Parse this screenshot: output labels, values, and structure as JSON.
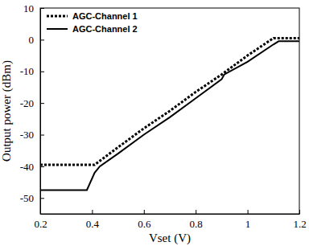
{
  "chart_data": {
    "type": "line",
    "x_label": "Vset (V)",
    "y_label": "Output power (dBm)",
    "xlim": [
      0.2,
      1.2
    ],
    "xticks": [
      0.2,
      0.4,
      0.6,
      0.8,
      1,
      1.2
    ],
    "ylim": [
      -55,
      10
    ],
    "yticks": [
      -50,
      -40,
      -30,
      -20,
      -10,
      0,
      10
    ],
    "legend": "upper left",
    "grid": false,
    "series": [
      {
        "name": "AGC-Channel 1",
        "color": "#000000",
        "line_style": "dotted",
        "x": [
          0.2,
          0.41,
          0.5,
          0.6,
          0.7,
          0.8,
          0.9,
          1.0,
          1.1,
          1.2
        ],
        "values": [
          -39.5,
          -39.5,
          -34,
          -28,
          -22.5,
          -16.5,
          -11,
          -5,
          0.5,
          0.5
        ]
      },
      {
        "name": "AGC-Channel 2",
        "color": "#000000",
        "line_style": "solid",
        "x": [
          0.2,
          0.38,
          0.41,
          0.43,
          0.5,
          0.6,
          0.7,
          0.8,
          0.9,
          0.91,
          1.0,
          1.1,
          1.12,
          1.2
        ],
        "values": [
          -47.5,
          -47.5,
          -42,
          -40,
          -36,
          -30,
          -24.5,
          -18.5,
          -12.5,
          -11,
          -7,
          -1.5,
          -0.5,
          -0.5
        ]
      }
    ]
  }
}
